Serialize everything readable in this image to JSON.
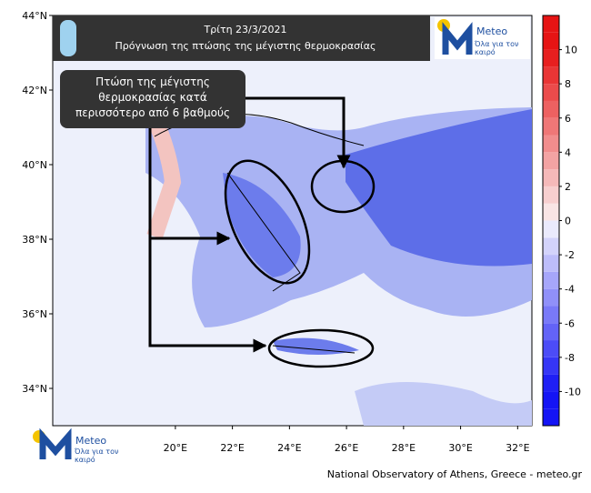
{
  "header": {
    "title_line1": "Τρίτη 23/3/2021",
    "title_line2": "Πρόγνωση της πτώσης της μέγιστης θερμοκρασίας"
  },
  "annotation": "Πτώση της μέγιστης θερμοκρασίας κατά περισσότερο από 6 βαθμούς",
  "logo": {
    "name": "Meteo",
    "tagline": "Όλα για τον καιρό"
  },
  "map": {
    "latlim": [
      33,
      44
    ],
    "lonlim": [
      15.7,
      32.5
    ],
    "lat_ticks": [
      {
        "value": 44,
        "label": "44°N"
      },
      {
        "value": 42,
        "label": "42°N"
      },
      {
        "value": 40,
        "label": "40°N"
      },
      {
        "value": 38,
        "label": "38°N"
      },
      {
        "value": 36,
        "label": "36°N"
      },
      {
        "value": 34,
        "label": "34°N"
      }
    ],
    "lon_ticks": [
      {
        "value": 20,
        "label": "20°E"
      },
      {
        "value": 22,
        "label": "22°E"
      },
      {
        "value": 24,
        "label": "24°E"
      },
      {
        "value": 26,
        "label": "26°E"
      },
      {
        "value": 28,
        "label": "28°E"
      },
      {
        "value": 30,
        "label": "30°E"
      },
      {
        "value": 32,
        "label": "32°E"
      }
    ]
  },
  "colorbar": {
    "lim": [
      -12,
      12
    ],
    "ticks": [
      10,
      8,
      6,
      4,
      2,
      0,
      -2,
      -4,
      -6,
      -8,
      -10
    ]
  },
  "footer": "National Observatory of Athens, Greece - meteo.gr"
}
